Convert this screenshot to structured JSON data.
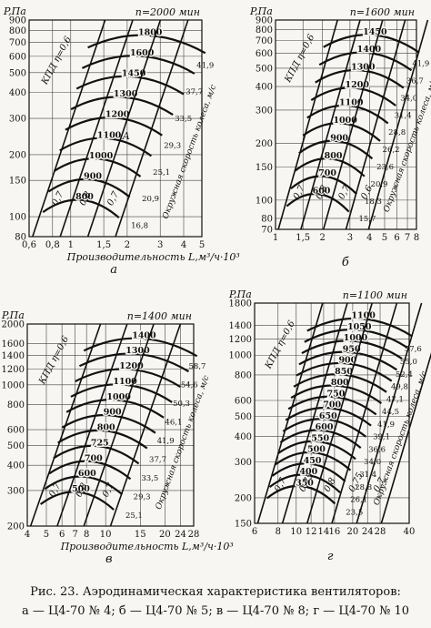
{
  "page": {
    "caption_line1": "Рис. 23. Аэродинамическая характеристика вентиляторов:",
    "caption_line2": "а — Ц4-70 № 4; б — Ц4-70 № 5; в — Ц4-70 № 8; г — Ц4-70 № 10"
  },
  "chart_data": [
    {
      "type": "line",
      "panel_letter": "а",
      "speed_label": "n=2000 мин",
      "ylabel": "P,Па",
      "xlabel": "Производительность L,м³/ч·10³",
      "x_ticks": [
        "0,6",
        "0,8",
        "1",
        "1,5",
        "2",
        "3",
        "4",
        "5"
      ],
      "y_ticks": [
        "80",
        "100",
        "150",
        "200",
        "300",
        "400",
        "500",
        "600",
        "700",
        "800",
        "900"
      ],
      "efficiency_label": "КПД η=0,6",
      "efficiency_values": [
        "0,7",
        "0,8",
        "0,7"
      ],
      "speed_curve_labels": [
        "1800",
        "1600",
        "1450",
        "1300",
        "1200",
        "1100",
        "1000",
        "900",
        "800"
      ],
      "velocity_values": [
        "41,9",
        "37,7",
        "33,5",
        "29,3",
        "25,1",
        "20,9",
        "16,8"
      ],
      "velocity_axis_label": "Окружная скорость колеса, м/с",
      "marker": "А"
    },
    {
      "type": "line",
      "panel_letter": "б",
      "speed_label": "n=1600 мин",
      "ylabel": "P,Па",
      "xlabel": "",
      "x_ticks": [
        "1",
        "1,5",
        "2",
        "3",
        "4",
        "5",
        "6",
        "7",
        "8"
      ],
      "y_ticks": [
        "70",
        "80",
        "100",
        "150",
        "200",
        "300",
        "400",
        "500",
        "600",
        "700",
        "800",
        "900"
      ],
      "efficiency_label": "КПД η=0,6",
      "efficiency_values": [
        "0,7",
        "0,8",
        "0,7",
        "0,6"
      ],
      "speed_curve_labels": [
        "1450",
        "1400",
        "1300",
        "1200",
        "1100",
        "1000",
        "900",
        "800",
        "700",
        "600"
      ],
      "velocity_values": [
        "41,9",
        "36,7",
        "34,0",
        "31,4",
        "28,8",
        "26,2",
        "23,6",
        "20,9",
        "18,3",
        "15,7"
      ],
      "velocity_axis_label": "Окружная скорость колеса, м/с"
    },
    {
      "type": "line",
      "panel_letter": "в",
      "speed_label": "n=1400 мин",
      "ylabel": "P,Па",
      "xlabel": "Производительность L,м³/ч·10³",
      "x_ticks": [
        "4",
        "5",
        "6",
        "7",
        "8",
        "10",
        "15",
        "20",
        "24",
        "28"
      ],
      "y_ticks": [
        "200",
        "300",
        "400",
        "500",
        "600",
        "800",
        "1000",
        "1200",
        "1400",
        "1600",
        "2000"
      ],
      "efficiency_label": "КПД η=0,6",
      "efficiency_values": [
        "0,7",
        "0,8",
        "0,7"
      ],
      "speed_curve_labels": [
        "1400",
        "1300",
        "1200",
        "1100",
        "1000",
        "900",
        "800",
        "725",
        "700",
        "600",
        "500"
      ],
      "velocity_values": [
        "58,7",
        "54,6",
        "50,3",
        "46,1",
        "41,9",
        "37,7",
        "33,5",
        "29,3",
        "25,1"
      ],
      "velocity_axis_label": "Окружная скорость колеса, м/с"
    },
    {
      "type": "line",
      "panel_letter": "г",
      "speed_label": "n=1100 мин",
      "ylabel": "P,Па",
      "xlabel": "",
      "x_ticks": [
        "6",
        "8",
        "10",
        "12",
        "14",
        "16",
        "20",
        "24",
        "28",
        "40"
      ],
      "y_ticks": [
        "150",
        "200",
        "300",
        "400",
        "500",
        "600",
        "800",
        "1000",
        "1200",
        "1400",
        "1800"
      ],
      "efficiency_label": "КПД η=0,6",
      "efficiency_values": [
        "0,7",
        "0,75",
        "0,8",
        "0,75",
        "0,7"
      ],
      "speed_curve_labels": [
        "1100",
        "1050",
        "1000",
        "950",
        "900",
        "850",
        "800",
        "750",
        "700",
        "650",
        "600",
        "550",
        "500",
        "450",
        "400",
        "350"
      ],
      "velocity_values": [
        "57,6",
        "55,0",
        "52,4",
        "49,8",
        "47,1",
        "44,5",
        "41,9",
        "39,1",
        "36,6",
        "34,0",
        "31,4",
        "28,8",
        "26,1",
        "23,5"
      ],
      "velocity_axis_label": "Окружная скорость колеса, м/с"
    }
  ]
}
